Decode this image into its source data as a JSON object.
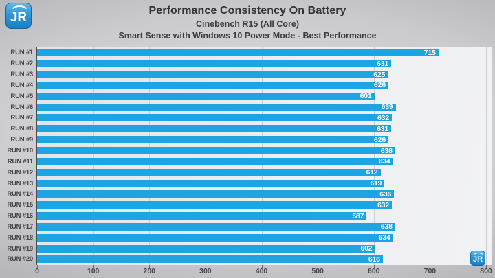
{
  "logo": {
    "text": "JR"
  },
  "header": {
    "title": "Performance Consistency On Battery",
    "subtitle1": "Cinebench R15 (All Core)",
    "subtitle2": "Smart Sense with Windows 10 Power Mode - Best Performance"
  },
  "chart_data": {
    "type": "bar",
    "orientation": "horizontal",
    "title": "Performance Consistency On Battery",
    "subtitle": "Cinebench R15 (All Core)",
    "subtitle2": "Smart Sense with Windows 10 Power Mode - Best Performance",
    "categories": [
      "RUN #1",
      "RUN #2",
      "RUN #3",
      "RUN #4",
      "RUN #5",
      "RUN #6",
      "RUN #7",
      "RUN #8",
      "RUN #9",
      "RUN #10",
      "RUN #11",
      "RUN #12",
      "RUN #13",
      "RUN #14",
      "RUN #15",
      "RUN #16",
      "RUN #17",
      "RUN #18",
      "RUN #19",
      "RUN #20"
    ],
    "values": [
      715,
      631,
      625,
      626,
      601,
      639,
      632,
      631,
      626,
      638,
      634,
      612,
      619,
      636,
      632,
      587,
      638,
      634,
      602,
      616
    ],
    "xlim": [
      0,
      800
    ],
    "xticks": [
      0,
      100,
      200,
      300,
      400,
      500,
      600,
      700,
      800
    ],
    "grid": true,
    "legend": "none",
    "bar_color": "#1da4e2",
    "value_label_color": "#ffffff"
  }
}
